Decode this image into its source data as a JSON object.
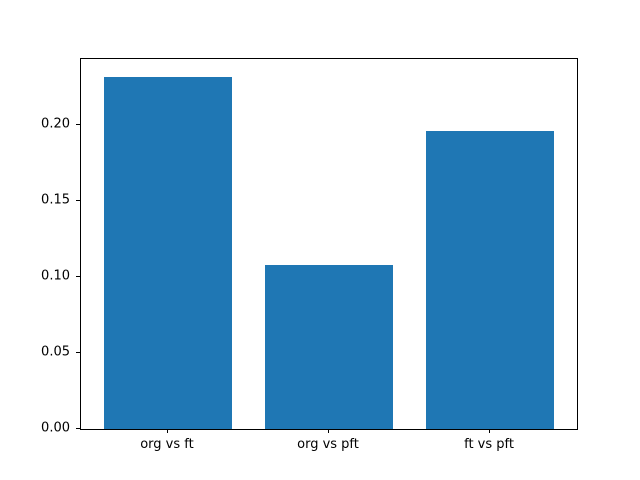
{
  "chart_data": {
    "type": "bar",
    "categories": [
      "org vs ft",
      "org vs pft",
      "ft vs pft"
    ],
    "values": [
      0.232,
      0.108,
      0.196
    ],
    "title": "",
    "xlabel": "",
    "ylabel": "",
    "ylim": [
      0,
      0.2436
    ],
    "yticks": [
      0.0,
      0.05,
      0.1,
      0.15,
      0.2
    ],
    "ytick_labels": [
      "0.00",
      "0.05",
      "0.10",
      "0.15",
      "0.20"
    ],
    "bar_color": "#1f77b4",
    "background_color": "#ffffff",
    "axis_color": "#000000",
    "grid": false,
    "legend": "none",
    "bar_width_fraction": 0.8
  }
}
